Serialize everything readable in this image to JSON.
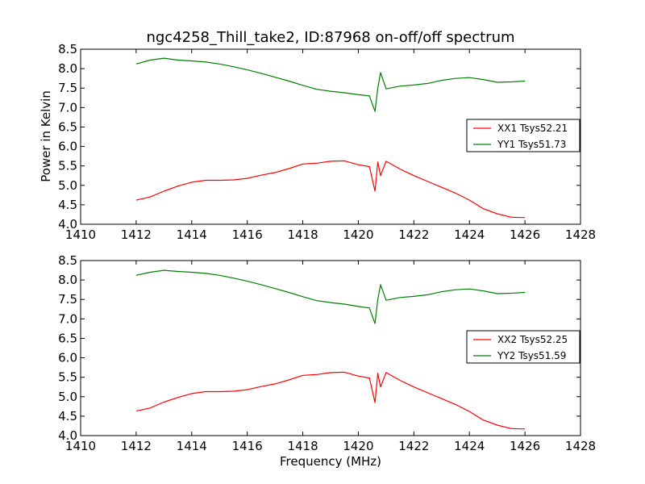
{
  "chart_data": [
    {
      "type": "line",
      "title": "ngc4258_Thill_take2, ID:87968 on-off/off spectrum",
      "xlabel": "",
      "ylabel": "Power in Kelvin",
      "xlim": [
        1410,
        1428
      ],
      "ylim": [
        4.0,
        8.5
      ],
      "xticks": [
        "1410",
        "1412",
        "1414",
        "1416",
        "1418",
        "1420",
        "1422",
        "1424",
        "1426",
        "1428"
      ],
      "yticks": [
        "4.0",
        "4.5",
        "5.0",
        "5.5",
        "6.0",
        "6.5",
        "7.0",
        "7.5",
        "8.0",
        "8.5"
      ],
      "legend_position": "right-center",
      "grid": false,
      "series": [
        {
          "name": "XX1 Tsys52.21",
          "color": "#ff0000",
          "x": [
            1412.0,
            1412.5,
            1413.0,
            1413.5,
            1414.0,
            1414.5,
            1415.0,
            1415.5,
            1416.0,
            1416.5,
            1417.0,
            1417.5,
            1418.0,
            1418.5,
            1419.0,
            1419.5,
            1420.0,
            1420.4,
            1420.6,
            1420.7,
            1420.8,
            1421.0,
            1421.5,
            1422.0,
            1422.5,
            1423.0,
            1423.5,
            1424.0,
            1424.5,
            1425.0,
            1425.5,
            1426.0
          ],
          "y": [
            4.62,
            4.7,
            4.85,
            4.98,
            5.08,
            5.13,
            5.13,
            5.14,
            5.18,
            5.26,
            5.33,
            5.43,
            5.55,
            5.57,
            5.62,
            5.63,
            5.53,
            5.48,
            4.85,
            5.6,
            5.25,
            5.62,
            5.42,
            5.25,
            5.1,
            4.95,
            4.8,
            4.62,
            4.4,
            4.27,
            4.18,
            4.17
          ]
        },
        {
          "name": "YY1 Tsys51.73",
          "color": "#008000",
          "x": [
            1412.0,
            1412.5,
            1413.0,
            1413.5,
            1414.0,
            1414.5,
            1415.0,
            1415.5,
            1416.0,
            1416.5,
            1417.0,
            1417.5,
            1418.0,
            1418.5,
            1419.0,
            1419.5,
            1420.0,
            1420.4,
            1420.6,
            1420.7,
            1420.8,
            1421.0,
            1421.5,
            1422.0,
            1422.5,
            1423.0,
            1423.5,
            1424.0,
            1424.5,
            1425.0,
            1425.5,
            1426.0
          ],
          "y": [
            8.12,
            8.22,
            8.27,
            8.22,
            8.2,
            8.17,
            8.12,
            8.05,
            7.97,
            7.88,
            7.78,
            7.68,
            7.57,
            7.47,
            7.42,
            7.38,
            7.33,
            7.3,
            6.9,
            7.5,
            7.9,
            7.48,
            7.55,
            7.58,
            7.62,
            7.7,
            7.75,
            7.77,
            7.72,
            7.65,
            7.66,
            7.68
          ]
        }
      ]
    },
    {
      "type": "line",
      "title": "",
      "xlabel": "Frequency (MHz)",
      "ylabel": "",
      "xlim": [
        1410,
        1428
      ],
      "ylim": [
        4.0,
        8.5
      ],
      "xticks": [
        "1410",
        "1412",
        "1414",
        "1416",
        "1418",
        "1420",
        "1422",
        "1424",
        "1426",
        "1428"
      ],
      "yticks": [
        "4.0",
        "4.5",
        "5.0",
        "5.5",
        "6.0",
        "6.5",
        "7.0",
        "7.5",
        "8.0",
        "8.5"
      ],
      "legend_position": "right-center",
      "grid": false,
      "series": [
        {
          "name": "XX2 Tsys52.25",
          "color": "#ff0000",
          "x": [
            1412.0,
            1412.5,
            1413.0,
            1413.5,
            1414.0,
            1414.5,
            1415.0,
            1415.5,
            1416.0,
            1416.5,
            1417.0,
            1417.5,
            1418.0,
            1418.5,
            1419.0,
            1419.5,
            1420.0,
            1420.4,
            1420.6,
            1420.7,
            1420.8,
            1421.0,
            1421.5,
            1422.0,
            1422.5,
            1423.0,
            1423.5,
            1424.0,
            1424.5,
            1425.0,
            1425.5,
            1426.0
          ],
          "y": [
            4.63,
            4.71,
            4.86,
            4.98,
            5.08,
            5.13,
            5.13,
            5.14,
            5.18,
            5.26,
            5.33,
            5.43,
            5.55,
            5.57,
            5.62,
            5.63,
            5.53,
            5.48,
            4.85,
            5.6,
            5.25,
            5.62,
            5.42,
            5.25,
            5.1,
            4.95,
            4.8,
            4.62,
            4.4,
            4.27,
            4.18,
            4.17
          ]
        },
        {
          "name": "YY2 Tsys51.59",
          "color": "#008000",
          "x": [
            1412.0,
            1412.5,
            1413.0,
            1413.5,
            1414.0,
            1414.5,
            1415.0,
            1415.5,
            1416.0,
            1416.5,
            1417.0,
            1417.5,
            1418.0,
            1418.5,
            1419.0,
            1419.5,
            1420.0,
            1420.4,
            1420.6,
            1420.7,
            1420.8,
            1421.0,
            1421.5,
            1422.0,
            1422.5,
            1423.0,
            1423.5,
            1424.0,
            1424.5,
            1425.0,
            1425.5,
            1426.0
          ],
          "y": [
            8.12,
            8.2,
            8.25,
            8.22,
            8.2,
            8.17,
            8.12,
            8.05,
            7.97,
            7.88,
            7.78,
            7.68,
            7.57,
            7.47,
            7.42,
            7.38,
            7.32,
            7.28,
            6.88,
            7.5,
            7.88,
            7.48,
            7.55,
            7.58,
            7.62,
            7.7,
            7.75,
            7.77,
            7.72,
            7.65,
            7.66,
            7.68
          ]
        }
      ]
    }
  ]
}
